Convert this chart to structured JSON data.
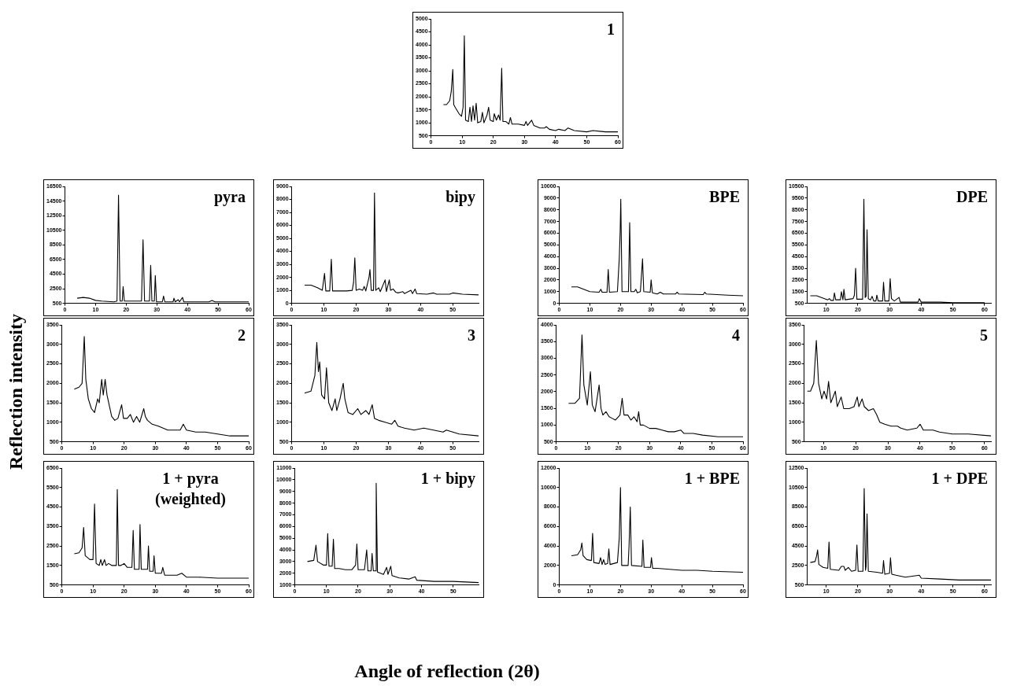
{
  "chart_data": [
    {
      "type": "line",
      "title": "1",
      "color": "#000000",
      "xlim": [
        0,
        60
      ],
      "xticks": [
        0,
        10,
        20,
        30,
        40,
        50,
        60
      ],
      "ylim": [
        500,
        5000
      ],
      "yticks": [
        500,
        1000,
        1500,
        2000,
        2500,
        3000,
        3500,
        4000,
        4500,
        5000
      ],
      "x": [
        4,
        5,
        6,
        6.5,
        7,
        7.3,
        8,
        9,
        9.8,
        10.3,
        10.7,
        11.1,
        12,
        12.5,
        13,
        13.5,
        14,
        14.5,
        15,
        16,
        16.5,
        17,
        18,
        18.5,
        19,
        20,
        20.3,
        21,
        21.7,
        22.2,
        22.7,
        23.1,
        24,
        25,
        25.5,
        26,
        28,
        30,
        30.5,
        31,
        32.3,
        33,
        35,
        36.5,
        37,
        38,
        40,
        41,
        43,
        44,
        46,
        50,
        52,
        56,
        60
      ],
      "values": [
        1700,
        1700,
        1850,
        2200,
        3050,
        1700,
        1550,
        1350,
        1250,
        1600,
        4350,
        1100,
        1050,
        1600,
        1050,
        1650,
        1100,
        1750,
        1000,
        1050,
        1400,
        1000,
        1300,
        1600,
        1100,
        1050,
        1350,
        1100,
        1300,
        1100,
        3100,
        1050,
        1050,
        950,
        1200,
        950,
        950,
        900,
        1050,
        900,
        1100,
        900,
        800,
        800,
        850,
        750,
        700,
        750,
        700,
        800,
        700,
        650,
        700,
        650,
        650
      ]
    },
    {
      "type": "line",
      "title": "pyra",
      "color": "#000000",
      "xlim": [
        0,
        60
      ],
      "xticks": [
        0,
        10,
        20,
        30,
        40,
        50,
        60
      ],
      "ylim": [
        500,
        16500
      ],
      "yticks": [
        500,
        2500,
        4500,
        6500,
        8500,
        10500,
        12500,
        14500,
        16500
      ],
      "x": [
        4,
        6,
        8,
        10,
        12,
        16,
        17,
        17.5,
        18,
        18.7,
        19,
        19.4,
        25,
        25.5,
        26,
        27.6,
        28,
        28.4,
        29.2,
        29.5,
        29.9,
        31.8,
        32.2,
        32.6,
        35.3,
        35.6,
        36,
        37,
        37.4,
        38.4,
        38.8,
        42,
        47,
        48,
        49,
        55,
        60
      ],
      "values": [
        1200,
        1300,
        1200,
        900,
        800,
        700,
        800,
        15300,
        800,
        800,
        2800,
        800,
        800,
        9200,
        800,
        800,
        5700,
        800,
        800,
        4300,
        700,
        700,
        1500,
        700,
        700,
        1200,
        700,
        1000,
        700,
        1300,
        700,
        700,
        700,
        900,
        700,
        700,
        700
      ]
    },
    {
      "type": "line",
      "title": "bipy",
      "color": "#000000",
      "xlim": [
        0,
        58
      ],
      "xticks": [
        0,
        10,
        20,
        30,
        40,
        50
      ],
      "ylim": [
        0,
        9000
      ],
      "yticks": [
        0,
        1000,
        2000,
        3000,
        4000,
        5000,
        6000,
        7000,
        8000,
        9000
      ],
      "x": [
        4,
        6,
        8,
        9.5,
        10.2,
        10.6,
        11.8,
        12.3,
        12.7,
        17,
        18.8,
        19.2,
        19.6,
        20,
        21,
        22,
        22.5,
        23,
        24,
        24.3,
        24.7,
        25.4,
        25.7,
        26.1,
        27,
        27.5,
        29,
        29.4,
        30.3,
        30.7,
        31.5,
        32.3,
        33,
        34.5,
        35,
        37,
        37.5,
        38.3,
        38.8,
        42,
        44,
        45,
        49,
        50,
        53,
        58
      ],
      "values": [
        1400,
        1400,
        1200,
        1000,
        2300,
        950,
        950,
        3400,
        950,
        950,
        1000,
        1600,
        3500,
        1000,
        1100,
        1000,
        1300,
        950,
        2000,
        2600,
        1000,
        1000,
        8500,
        1000,
        1200,
        900,
        1800,
        900,
        1800,
        1000,
        1100,
        850,
        800,
        900,
        750,
        1000,
        750,
        1100,
        750,
        700,
        800,
        700,
        700,
        800,
        700,
        650
      ]
    },
    {
      "type": "line",
      "title": "BPE",
      "color": "#000000",
      "xlim": [
        0,
        60
      ],
      "xticks": [
        0,
        10,
        20,
        30,
        40,
        50,
        60
      ],
      "ylim": [
        0,
        10000
      ],
      "yticks": [
        0,
        1000,
        2000,
        3000,
        4000,
        5000,
        6000,
        7000,
        8000,
        9000,
        10000
      ],
      "x": [
        4,
        6,
        8,
        10,
        13,
        13.6,
        14,
        15.6,
        16,
        16.4,
        19,
        19.6,
        19.9,
        20.1,
        20.5,
        22.6,
        23,
        23.4,
        24.5,
        25,
        25.5,
        26.5,
        27.2,
        27.6,
        29.7,
        30,
        30.4,
        32,
        33,
        34,
        38,
        38.5,
        39,
        47,
        47.5,
        48,
        55,
        60
      ],
      "values": [
        1400,
        1400,
        1200,
        1000,
        950,
        1200,
        950,
        950,
        2900,
        950,
        1000,
        3800,
        6200,
        8900,
        1000,
        1000,
        6900,
        1000,
        1000,
        1200,
        900,
        1000,
        3800,
        1000,
        950,
        2000,
        900,
        800,
        950,
        800,
        800,
        950,
        800,
        750,
        950,
        800,
        700,
        650
      ]
    },
    {
      "type": "line",
      "title": "DPE",
      "color": "#000000",
      "xlim": [
        4,
        62
      ],
      "xticks": [
        10,
        20,
        30,
        40,
        50,
        60
      ],
      "ylim": [
        500,
        10500
      ],
      "yticks": [
        500,
        1500,
        2500,
        3500,
        4500,
        5500,
        6500,
        7500,
        8500,
        9500,
        10500
      ],
      "x": [
        5,
        7,
        9,
        10.5,
        11,
        11.5,
        12.3,
        12.6,
        13,
        14.5,
        14.8,
        15.3,
        15.6,
        16,
        18.5,
        18.9,
        19.3,
        19.7,
        21.5,
        21.9,
        22.3,
        22.6,
        22.9,
        23.3,
        24,
        24.5,
        25,
        25.7,
        26,
        26.4,
        27.8,
        28.1,
        28.5,
        29.8,
        30.2,
        30.6,
        31.5,
        33,
        33.4,
        35,
        39,
        39.4,
        40,
        46,
        50,
        60
      ],
      "values": [
        1150,
        1150,
        950,
        800,
        900,
        750,
        750,
        1400,
        800,
        800,
        1500,
        800,
        1700,
        800,
        900,
        1200,
        3500,
        850,
        850,
        9400,
        1000,
        1100,
        6800,
        900,
        800,
        1100,
        700,
        700,
        1200,
        700,
        700,
        2300,
        700,
        700,
        2600,
        900,
        700,
        1000,
        600,
        600,
        600,
        900,
        600,
        600,
        550,
        550
      ]
    },
    {
      "type": "line",
      "title": "2",
      "ylabel": "Reflection intensity",
      "color": "#000000",
      "xlim": [
        0,
        60
      ],
      "xticks": [
        0,
        10,
        20,
        30,
        40,
        50,
        60
      ],
      "ylim": [
        500,
        3500
      ],
      "yticks": [
        500,
        1000,
        1500,
        2000,
        2500,
        3000,
        3500
      ],
      "x": [
        4,
        5.5,
        6.5,
        7.2,
        7.7,
        8.5,
        9.5,
        10.5,
        11.5,
        12,
        12.8,
        13.3,
        13.9,
        14.5,
        16,
        17,
        18,
        19.2,
        19.8,
        21,
        22,
        23,
        24,
        25,
        26.3,
        26.8,
        27.5,
        29,
        31,
        34,
        36,
        38,
        39,
        40,
        43,
        46,
        50,
        54,
        60
      ],
      "values": [
        1850,
        1900,
        2000,
        3200,
        2100,
        1600,
        1350,
        1250,
        1600,
        1500,
        2100,
        1700,
        2100,
        1700,
        1150,
        1050,
        1100,
        1450,
        1100,
        1100,
        1200,
        1000,
        1150,
        1000,
        1350,
        1150,
        1050,
        950,
        900,
        800,
        800,
        800,
        950,
        800,
        750,
        750,
        700,
        650,
        650
      ]
    },
    {
      "type": "line",
      "title": "3",
      "color": "#000000",
      "xlim": [
        0,
        58
      ],
      "xticks": [
        0,
        10,
        20,
        30,
        40,
        50
      ],
      "ylim": [
        500,
        3500
      ],
      "yticks": [
        500,
        1000,
        1500,
        2000,
        2500,
        3000,
        3500
      ],
      "x": [
        4,
        6,
        7.2,
        7.8,
        8.3,
        8.7,
        9.3,
        10.2,
        10.8,
        11.5,
        12.5,
        13.5,
        14,
        15,
        16,
        16.5,
        17.5,
        19,
        20.5,
        21.5,
        23,
        24,
        25,
        25.7,
        27,
        29,
        31,
        32,
        33,
        35,
        38,
        41,
        44,
        47,
        48,
        52,
        58
      ],
      "values": [
        1750,
        1800,
        2200,
        3050,
        2300,
        2550,
        1700,
        1600,
        2400,
        1500,
        1300,
        1600,
        1300,
        1600,
        2000,
        1600,
        1250,
        1200,
        1350,
        1200,
        1300,
        1200,
        1450,
        1100,
        1050,
        1000,
        950,
        1050,
        900,
        850,
        800,
        850,
        800,
        750,
        800,
        700,
        650
      ]
    },
    {
      "type": "line",
      "title": "4",
      "color": "#000000",
      "xlim": [
        0,
        60
      ],
      "xticks": [
        0,
        10,
        20,
        30,
        40,
        50,
        60
      ],
      "ylim": [
        500,
        4000
      ],
      "yticks": [
        500,
        1000,
        1500,
        2000,
        2500,
        3000,
        3500,
        4000
      ],
      "x": [
        4,
        6,
        7.5,
        8.3,
        8.9,
        10,
        11,
        11.6,
        12.5,
        13.8,
        14.4,
        15,
        16,
        17,
        18,
        19,
        20.5,
        21.2,
        21.8,
        23,
        24,
        25,
        26,
        26.5,
        27,
        28,
        30,
        32,
        34,
        36,
        38,
        40,
        41,
        44,
        47,
        52,
        60
      ],
      "values": [
        1650,
        1650,
        1800,
        3700,
        2200,
        1600,
        2600,
        1600,
        1400,
        2200,
        1500,
        1300,
        1400,
        1250,
        1200,
        1150,
        1300,
        1800,
        1300,
        1300,
        1150,
        1250,
        1100,
        1400,
        1000,
        1000,
        900,
        900,
        850,
        800,
        800,
        850,
        750,
        750,
        700,
        650,
        650
      ]
    },
    {
      "type": "line",
      "title": "5",
      "color": "#000000",
      "xlim": [
        4,
        62
      ],
      "xticks": [
        10,
        20,
        30,
        40,
        50,
        60
      ],
      "ylim": [
        500,
        3500
      ],
      "yticks": [
        500,
        1000,
        1500,
        2000,
        2500,
        3000,
        3500
      ],
      "x": [
        5,
        6,
        7,
        7.8,
        8.5,
        9.5,
        10.2,
        11,
        11.6,
        12.3,
        13.7,
        14.3,
        15.5,
        16.3,
        18,
        19.5,
        20.5,
        21,
        22,
        22.7,
        24,
        25.5,
        26.5,
        27.5,
        29,
        31,
        33,
        34,
        36,
        39,
        40,
        41,
        44,
        46,
        50,
        55,
        62
      ],
      "values": [
        1800,
        1800,
        2000,
        3100,
        2000,
        1600,
        1800,
        1600,
        2050,
        1500,
        1800,
        1400,
        1650,
        1350,
        1350,
        1400,
        1650,
        1400,
        1600,
        1400,
        1300,
        1350,
        1200,
        1000,
        950,
        900,
        900,
        850,
        800,
        850,
        950,
        800,
        800,
        750,
        700,
        700,
        650
      ]
    },
    {
      "type": "line",
      "title": "1 + pyra (weighted)",
      "color": "#000000",
      "xlim": [
        0,
        60
      ],
      "xticks": [
        0,
        10,
        20,
        30,
        40,
        50,
        60
      ],
      "ylim": [
        500,
        6500
      ],
      "yticks": [
        500,
        1500,
        2500,
        3500,
        4500,
        5500,
        6500
      ],
      "x": [
        4,
        5.5,
        6.5,
        7,
        7.5,
        9,
        10,
        10.5,
        11,
        12,
        12.5,
        13,
        13.7,
        14.2,
        15,
        16,
        17.5,
        17.8,
        18.2,
        19,
        20,
        21,
        22.5,
        22.9,
        23.3,
        24.8,
        25.1,
        25.5,
        27.5,
        27.8,
        28.2,
        29.3,
        29.6,
        30,
        32,
        32.4,
        33,
        35,
        37,
        38.5,
        40,
        44,
        50,
        60
      ],
      "values": [
        2100,
        2150,
        2400,
        3450,
        2000,
        1800,
        1800,
        4650,
        1600,
        1500,
        1800,
        1500,
        1800,
        1500,
        1600,
        1500,
        1500,
        5400,
        1500,
        1500,
        1600,
        1400,
        1400,
        3300,
        1300,
        1300,
        3600,
        1300,
        1300,
        2500,
        1200,
        1200,
        2000,
        1100,
        1100,
        1400,
        1000,
        1000,
        1000,
        1100,
        900,
        900,
        850,
        850
      ]
    },
    {
      "type": "line",
      "title": "1 + bipy",
      "xlabel": "Angle of reflection (2θ)",
      "color": "#000000",
      "xlim": [
        0,
        58
      ],
      "xticks": [
        0,
        10,
        20,
        30,
        40,
        50
      ],
      "ylim": [
        1000,
        11000
      ],
      "yticks": [
        1000,
        2000,
        3000,
        4000,
        5000,
        6000,
        7000,
        8000,
        9000,
        10000,
        11000
      ],
      "x": [
        4,
        6,
        6.7,
        7.2,
        9,
        10,
        10.4,
        10.8,
        11.8,
        12.2,
        12.6,
        14,
        16,
        18,
        19.2,
        19.6,
        20,
        22,
        22.7,
        23.1,
        24.1,
        24.4,
        24.8,
        25.5,
        25.7,
        26.1,
        28,
        29,
        29.4,
        30.3,
        30.7,
        33,
        36,
        38,
        38.5,
        44,
        50,
        58
      ],
      "values": [
        3000,
        3100,
        4400,
        3000,
        2700,
        2700,
        5400,
        2600,
        2600,
        4900,
        2400,
        2400,
        2300,
        2300,
        2700,
        4500,
        2300,
        2300,
        4000,
        2200,
        2200,
        3700,
        2200,
        2200,
        9700,
        2100,
        1900,
        2500,
        1900,
        2600,
        1800,
        1600,
        1500,
        1700,
        1400,
        1300,
        1300,
        1200
      ]
    },
    {
      "type": "line",
      "title": "1 + BPE",
      "color": "#000000",
      "xlim": [
        0,
        60
      ],
      "xticks": [
        0,
        10,
        20,
        30,
        40,
        50,
        60
      ],
      "ylim": [
        0,
        12000
      ],
      "yticks": [
        0,
        2000,
        4000,
        6000,
        8000,
        10000,
        12000
      ],
      "x": [
        4,
        6,
        7,
        7.4,
        7.8,
        9,
        10.5,
        10.9,
        11.3,
        13,
        13.5,
        14,
        14.5,
        15,
        15.8,
        16.2,
        16.6,
        19,
        19.6,
        20,
        20.4,
        22.5,
        22.8,
        23.2,
        23.6,
        27,
        27.3,
        27.7,
        29.8,
        30.1,
        30.5,
        32,
        36,
        40,
        45,
        50,
        60
      ],
      "values": [
        3000,
        3100,
        3600,
        4300,
        3000,
        2600,
        2500,
        5300,
        2300,
        2200,
        2800,
        2100,
        2600,
        2100,
        2200,
        3700,
        2100,
        2300,
        4800,
        10000,
        2000,
        2000,
        4000,
        8000,
        2000,
        1900,
        4600,
        1800,
        1800,
        2800,
        1700,
        1700,
        1600,
        1500,
        1500,
        1400,
        1300
      ]
    },
    {
      "type": "line",
      "title": "1 + DPE",
      "color": "#000000",
      "xlim": [
        4,
        62
      ],
      "xticks": [
        10,
        20,
        30,
        40,
        50,
        60
      ],
      "ylim": [
        500,
        12500
      ],
      "yticks": [
        500,
        2500,
        4500,
        6500,
        8500,
        10500,
        12500
      ],
      "x": [
        5,
        6.5,
        7,
        7.3,
        7.7,
        9,
        10.5,
        10.9,
        11.3,
        14,
        14.8,
        15.6,
        16,
        17,
        18,
        19.3,
        19.7,
        20.1,
        21.6,
        22,
        22.4,
        22.6,
        22.9,
        23.3,
        26,
        27.8,
        28.1,
        28.5,
        30,
        30.3,
        30.7,
        32,
        35,
        39.4,
        40,
        46,
        52,
        62
      ],
      "values": [
        2800,
        2900,
        3500,
        4100,
        2600,
        2300,
        2200,
        4900,
        2100,
        2000,
        2400,
        2400,
        2000,
        2300,
        1900,
        2000,
        4600,
        1900,
        1900,
        10400,
        2000,
        2400,
        7800,
        1900,
        1800,
        1700,
        3000,
        1600,
        1700,
        3300,
        1600,
        1500,
        1300,
        1500,
        1200,
        1100,
        1000,
        1000
      ]
    }
  ]
}
